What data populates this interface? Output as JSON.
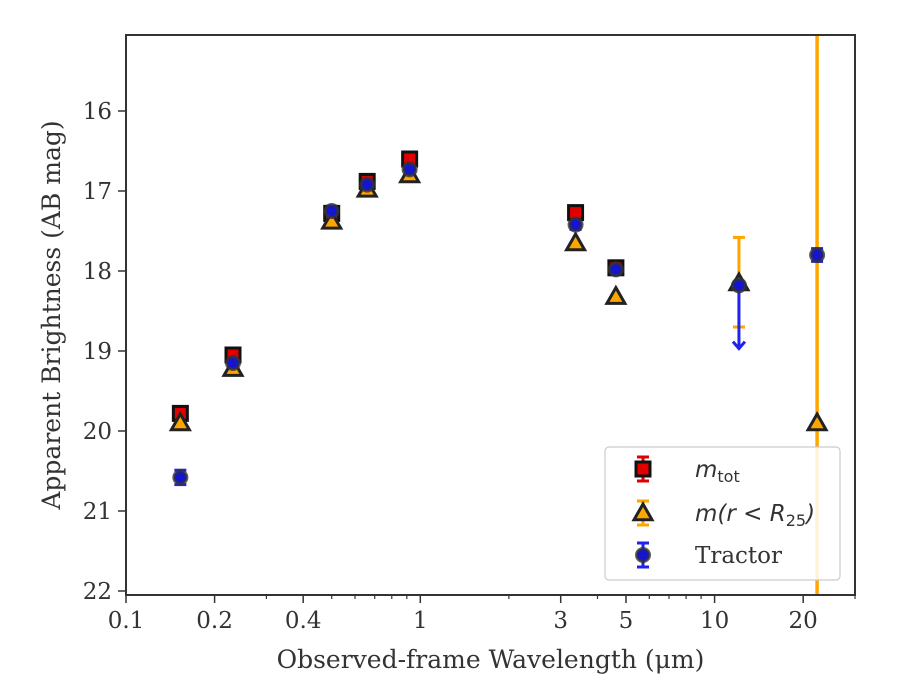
{
  "chart_data": {
    "type": "scatter",
    "xlabel": "Observed-frame Wavelength (μm)",
    "ylabel": "Apparent Brightness (AB mag)",
    "x_scale": "log",
    "y_inverted": true,
    "xlim": [
      0.1,
      30
    ],
    "ylim": [
      22.05,
      15.05
    ],
    "x_ticks": [
      0.1,
      0.2,
      0.4,
      1,
      3,
      5,
      10,
      20
    ],
    "x_tick_labels": [
      "0.1",
      "0.2",
      "0.4",
      "1",
      "3",
      "5",
      "10",
      "20"
    ],
    "y_ticks": [
      16,
      17,
      18,
      19,
      20,
      21,
      22
    ],
    "y_tick_labels": [
      "16",
      "17",
      "18",
      "19",
      "20",
      "21",
      "22"
    ],
    "grid": false,
    "legend_position": "lower-right",
    "series": [
      {
        "key": "mtot",
        "legend_text": "m",
        "legend_sub": "tot",
        "marker": "square",
        "face_color": "#e00000",
        "edge_color": "#111111",
        "error_color": "#e00000",
        "points": [
          {
            "x": 0.153,
            "y": 19.78
          },
          {
            "x": 0.231,
            "y": 19.05
          },
          {
            "x": 0.5,
            "y": 17.28
          },
          {
            "x": 0.66,
            "y": 16.88
          },
          {
            "x": 0.92,
            "y": 16.6
          },
          {
            "x": 3.37,
            "y": 17.27
          },
          {
            "x": 4.62,
            "y": 17.96
          }
        ]
      },
      {
        "key": "mr25",
        "legend_text": "m(r < R",
        "legend_sub": "25",
        "legend_after": ")",
        "marker": "triangle",
        "face_color": "#ffa500",
        "edge_color": "#222222",
        "error_color": "#ffa500",
        "points": [
          {
            "x": 0.153,
            "y": 19.9
          },
          {
            "x": 0.231,
            "y": 19.22
          },
          {
            "x": 0.5,
            "y": 17.38
          },
          {
            "x": 0.66,
            "y": 16.98
          },
          {
            "x": 0.92,
            "y": 16.8
          },
          {
            "x": 3.37,
            "y": 17.65
          },
          {
            "x": 4.62,
            "y": 18.32
          },
          {
            "x": 12.1,
            "y": 18.15,
            "err_low": 0.57,
            "err_high": 0.55
          },
          {
            "x": 22.3,
            "y": 19.9,
            "full_span": true
          }
        ]
      },
      {
        "key": "tractor",
        "legend_text": "Tractor",
        "marker": "circle",
        "face_color": "#1515d0",
        "edge_color": "#333333",
        "error_color": "#2222ee",
        "points": [
          {
            "x": 0.153,
            "y": 20.58,
            "err": 0.09
          },
          {
            "x": 0.231,
            "y": 19.15
          },
          {
            "x": 0.5,
            "y": 17.25,
            "err": 0.06
          },
          {
            "x": 0.66,
            "y": 16.92
          },
          {
            "x": 0.92,
            "y": 16.73
          },
          {
            "x": 3.37,
            "y": 17.42,
            "err": 0.06
          },
          {
            "x": 4.62,
            "y": 17.98
          },
          {
            "x": 12.1,
            "y": 18.18,
            "upper_limit": true,
            "arrow_to": 18.97
          },
          {
            "x": 22.3,
            "y": 17.8,
            "err": 0.08
          }
        ]
      }
    ]
  }
}
